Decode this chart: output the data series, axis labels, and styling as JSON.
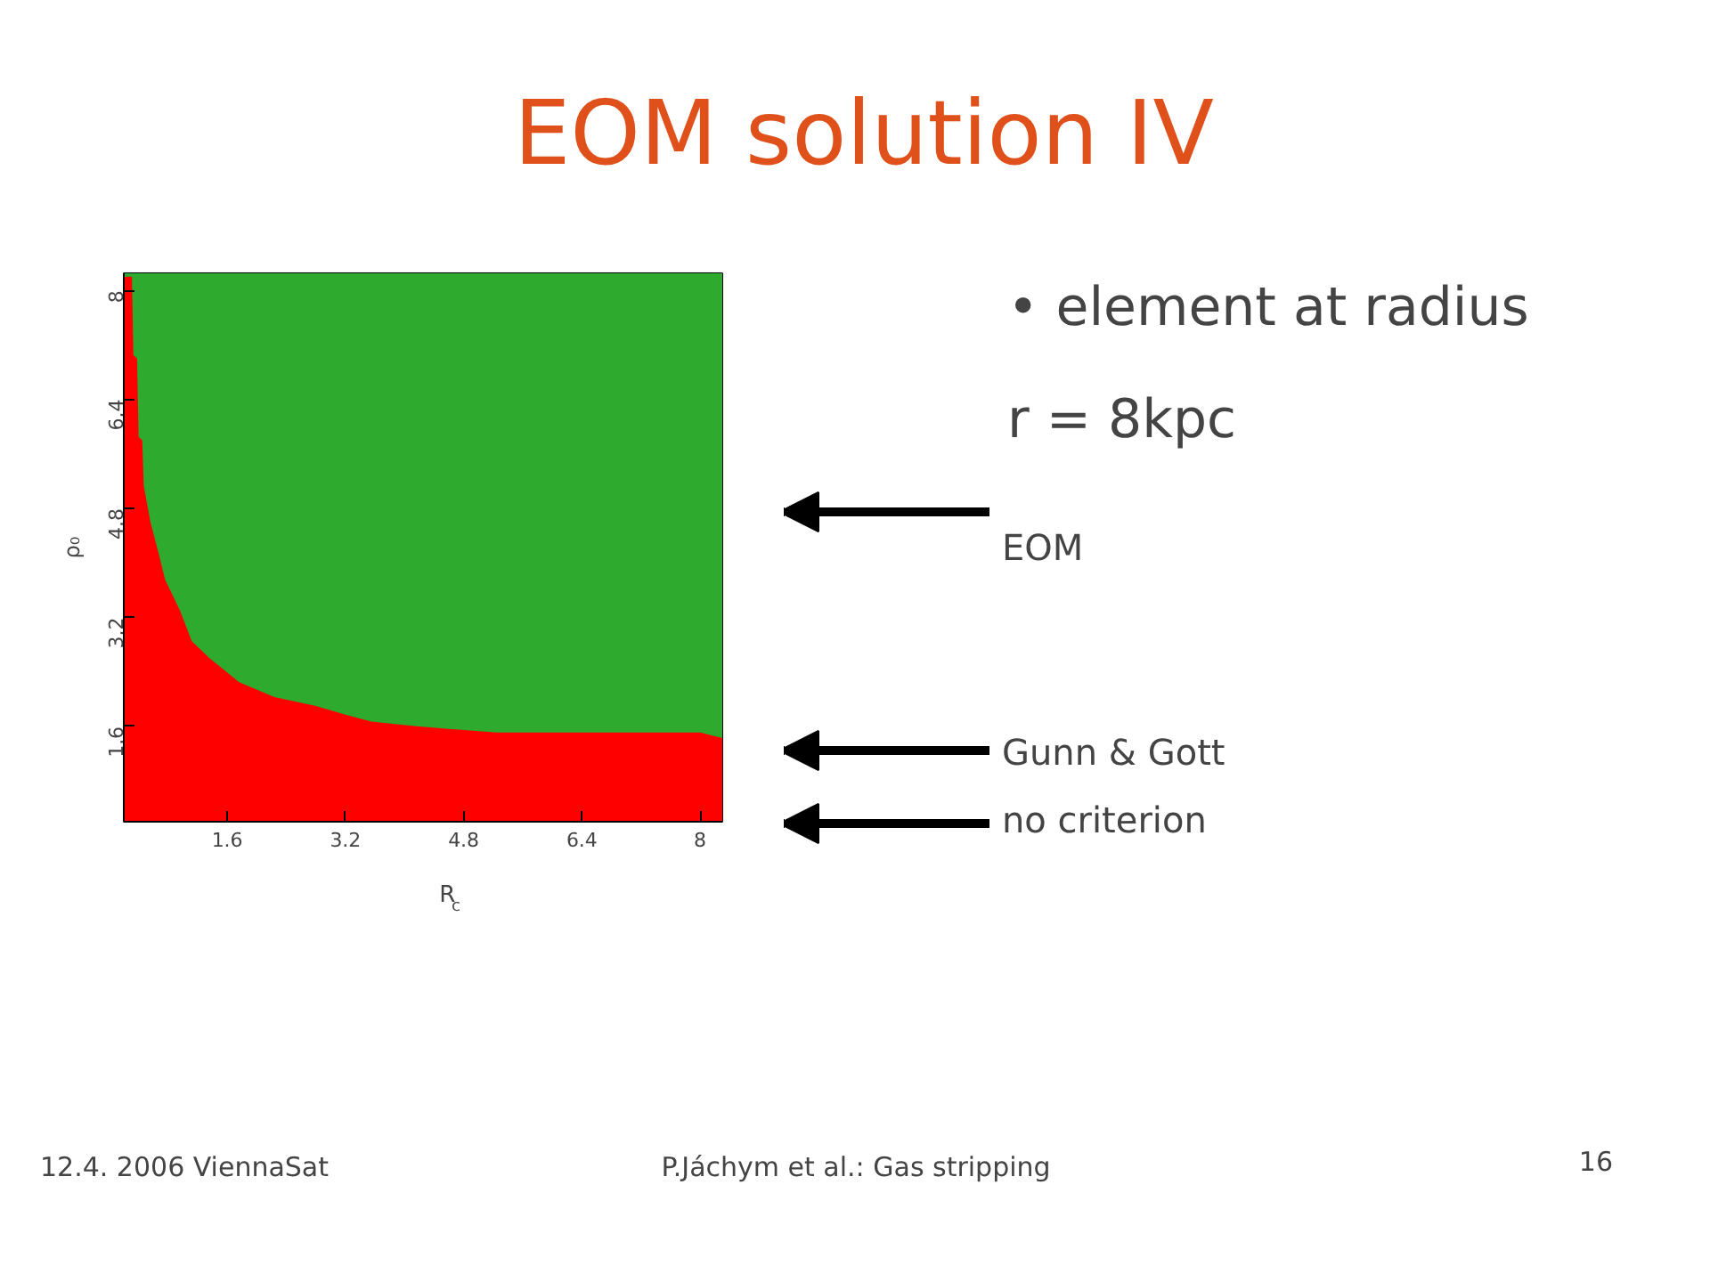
{
  "chart_data": {
    "type": "area",
    "title": "EOM solution IV",
    "xlabel": "R$_{c}$",
    "ylabel": "ρ₀",
    "x": [
      0.2,
      0.31,
      0.33,
      0.38,
      0.4,
      0.45,
      0.47,
      0.56,
      0.68,
      0.76,
      0.96,
      1.12,
      1.36,
      1.76,
      2.24,
      2.8,
      3.2,
      3.55,
      4.16,
      5.24,
      8.0,
      8.3
    ],
    "series": [
      {
        "color": "#ff0000",
        "values": [
          8.2,
          8.2,
          7.05,
          7.0,
          5.85,
          5.8,
          5.13,
          4.6,
          4.1,
          3.75,
          3.3,
          2.85,
          2.6,
          2.25,
          2.03,
          1.9,
          1.77,
          1.67,
          1.6,
          1.51,
          1.51,
          1.43
        ]
      }
    ],
    "bands": [
      {
        "axis": "y",
        "from": 0.2,
        "to": 8.25,
        "color": "#2eaa2e"
      }
    ],
    "xlim": [
      0.2,
      8.3
    ],
    "ylim": [
      0.2,
      8.25
    ],
    "xticks": [
      1.6,
      3.2,
      4.8,
      6.4,
      8
    ],
    "yticks": [
      1.6,
      3.2,
      4.8,
      6.4,
      8
    ],
    "annotations": [
      "• element at radius r = 8kpc",
      "EOM",
      "Gunn & Gott",
      "no criterion",
      "12.4. 2006 ViennaSat",
      "P.Jáchym et al.: Gas stripping",
      "16"
    ]
  }
}
